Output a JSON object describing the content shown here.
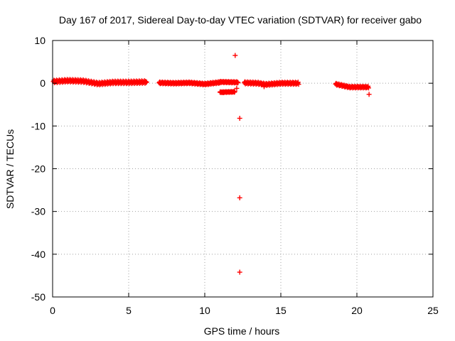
{
  "chart_data": {
    "type": "scatter",
    "title": "Day 167 of 2017, Sidereal Day-to-day VTEC variation (SDTVAR) for receiver gabo",
    "xlabel": "GPS time / hours",
    "ylabel": "SDTVAR / TECUs",
    "xlim": [
      0,
      25
    ],
    "ylim": [
      -50,
      10
    ],
    "xticks": [
      0,
      5,
      10,
      15,
      20,
      25
    ],
    "yticks": [
      -50,
      -40,
      -30,
      -20,
      -10,
      0,
      10
    ],
    "grid": true,
    "marker": "+",
    "color": "#ff0000",
    "segments": [
      {
        "x_start": 0.05,
        "x_end": 6.2,
        "center": [
          [
            0.05,
            0.4
          ],
          [
            1.0,
            0.6
          ],
          [
            2.0,
            0.5
          ],
          [
            3.0,
            -0.1
          ],
          [
            4.0,
            0.2
          ],
          [
            5.0,
            0.2
          ],
          [
            6.2,
            0.3
          ]
        ],
        "spread": 0.6
      },
      {
        "x_start": 7.0,
        "x_end": 11.0,
        "center": [
          [
            7.0,
            0.1
          ],
          [
            8.0,
            0.0
          ],
          [
            9.0,
            0.1
          ],
          [
            10.0,
            -0.2
          ],
          [
            11.0,
            0.2
          ]
        ],
        "spread": 0.4
      },
      {
        "x_start": 11.0,
        "x_end": 12.0,
        "center": [
          [
            11.0,
            -2.1
          ],
          [
            12.0,
            -2.0
          ]
        ],
        "spread": 0.2
      },
      {
        "x_start": 11.0,
        "x_end": 12.2,
        "center": [
          [
            11.0,
            0.3
          ],
          [
            12.2,
            0.2
          ]
        ],
        "spread": 0.3
      },
      {
        "x_start": 12.6,
        "x_end": 16.2,
        "center": [
          [
            12.6,
            0.1
          ],
          [
            13.5,
            0.0
          ],
          [
            14.0,
            -0.3
          ],
          [
            15.0,
            0.0
          ],
          [
            16.2,
            0.0
          ]
        ],
        "spread": 0.5
      },
      {
        "x_start": 18.6,
        "x_end": 20.8,
        "center": [
          [
            18.6,
            -0.2
          ],
          [
            19.5,
            -0.9
          ],
          [
            20.8,
            -0.9
          ]
        ],
        "spread": 0.4
      }
    ],
    "points": [
      {
        "x": 12.0,
        "y": 6.5
      },
      {
        "x": 12.3,
        "y": -8.2
      },
      {
        "x": 12.3,
        "y": -26.8
      },
      {
        "x": 12.3,
        "y": -44.2
      },
      {
        "x": 20.8,
        "y": -2.6
      },
      {
        "x": 11.2,
        "y": -2.2
      },
      {
        "x": 12.1,
        "y": -1.2
      },
      {
        "x": 13.9,
        "y": -0.8
      }
    ]
  }
}
